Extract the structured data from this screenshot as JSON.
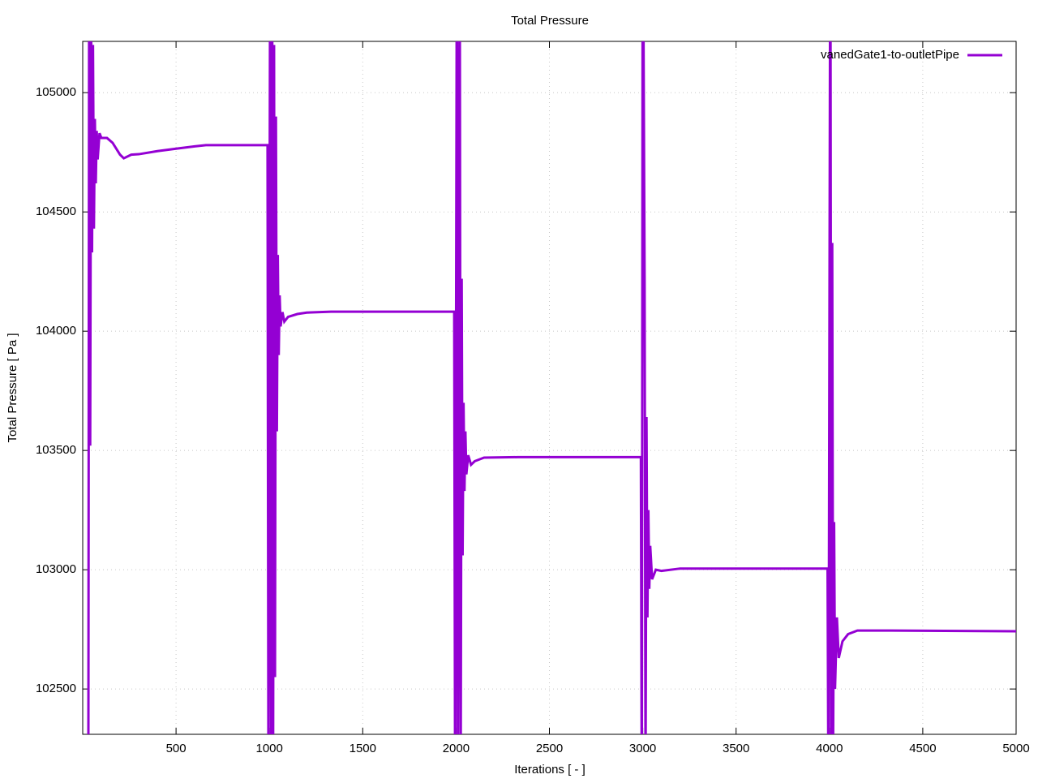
{
  "chart_data": {
    "type": "line",
    "title": "Total Pressure",
    "xlabel": "Iterations [ - ]",
    "ylabel": "Total Pressure [ Pa ]",
    "xlim": [
      0,
      5000
    ],
    "ylim": [
      102310,
      105215
    ],
    "xticks": [
      500,
      1000,
      1500,
      2000,
      2500,
      3000,
      3500,
      4000,
      4500,
      5000
    ],
    "yticks": [
      102500,
      103000,
      103500,
      104000,
      104500,
      105000
    ],
    "grid": true,
    "legend": "top right",
    "x": [
      20,
      30,
      35,
      40,
      45,
      50,
      55,
      60,
      65,
      70,
      75,
      80,
      90,
      100,
      130,
      160,
      200,
      220,
      260,
      300,
      400,
      500,
      600,
      660,
      990,
      995,
      1005,
      1010,
      1015,
      1020,
      1025,
      1030,
      1035,
      1040,
      1045,
      1050,
      1055,
      1060,
      1070,
      1080,
      1100,
      1150,
      1200,
      1330,
      1990,
      1995,
      2005,
      2010,
      2020,
      2025,
      2030,
      2035,
      2040,
      2045,
      2050,
      2055,
      2065,
      2080,
      2100,
      2150,
      2330,
      2990,
      2995,
      3000,
      3010,
      3015,
      3020,
      3025,
      3030,
      3035,
      3040,
      3050,
      3070,
      3100,
      3200,
      3320,
      3990,
      3995,
      4005,
      4010,
      4015,
      4020,
      4025,
      4030,
      4040,
      4050,
      4070,
      4100,
      4150,
      4330,
      5000
    ],
    "series": [
      {
        "name": "vanedGate1-to-outletPipe",
        "color": "#9400d3",
        "values": [
          102200,
          102000,
          106000,
          103520,
          105300,
          104330,
          105200,
          104430,
          104890,
          104620,
          104840,
          104720,
          104830,
          104810,
          104810,
          104790,
          104740,
          104725,
          104740,
          104742,
          104755,
          104765,
          104775,
          104780,
          104780,
          102000,
          106000,
          102000,
          105500,
          102200,
          105200,
          102550,
          104900,
          103580,
          104320,
          103900,
          104150,
          104020,
          104080,
          104040,
          104060,
          104072,
          104078,
          104082,
          104082,
          102000,
          106000,
          102000,
          105500,
          102200,
          104220,
          103060,
          103700,
          103330,
          103580,
          103400,
          103480,
          103440,
          103455,
          103470,
          103472,
          103472,
          102000,
          106000,
          104200,
          102100,
          103640,
          102800,
          103250,
          102920,
          103100,
          102960,
          103000,
          102995,
          103005,
          103005,
          103005,
          102000,
          106000,
          102200,
          104370,
          102300,
          103200,
          102500,
          102800,
          102630,
          102700,
          102730,
          102745,
          102745,
          102742
        ]
      }
    ]
  }
}
